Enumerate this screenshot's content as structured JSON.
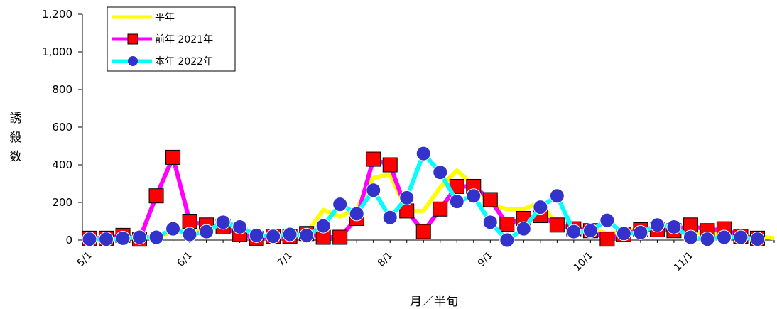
{
  "chart_data": {
    "type": "line",
    "ylabel": "誘殺数",
    "xlabel": "月／半旬",
    "ylim": [
      0,
      1200
    ],
    "yticks": [
      "0",
      "200",
      "400",
      "600",
      "800",
      "1,000",
      "1,200"
    ],
    "xtick_labels": [
      {
        "label": "5/1",
        "index": 0
      },
      {
        "label": "6/1",
        "index": 6
      },
      {
        "label": "7/1",
        "index": 12
      },
      {
        "label": "8/1",
        "index": 18
      },
      {
        "label": "9/1",
        "index": 24
      },
      {
        "label": "10/1",
        "index": 30
      },
      {
        "label": "11/1",
        "index": 36
      }
    ],
    "legend_position": "top-left",
    "series": [
      {
        "name": "平年",
        "color": "#ffff00",
        "marker": "none",
        "values": [
          10,
          10,
          15,
          10,
          15,
          45,
          35,
          65,
          85,
          50,
          25,
          20,
          25,
          35,
          160,
          125,
          165,
          330,
          350,
          155,
          155,
          280,
          370,
          290,
          185,
          165,
          165,
          200,
          80,
          65,
          60,
          35,
          45,
          60,
          60,
          45,
          40,
          35,
          30,
          25,
          20,
          10
        ]
      },
      {
        "name": "前年 2021年",
        "color": "#ff00ff",
        "marker": "square",
        "marker_fill": "#ff0000",
        "values": [
          10,
          10,
          25,
          5,
          235,
          440,
          100,
          80,
          70,
          30,
          10,
          20,
          20,
          35,
          15,
          15,
          115,
          430,
          400,
          155,
          45,
          165,
          285,
          285,
          215,
          85,
          115,
          130,
          80,
          60,
          50,
          5,
          30,
          55,
          55,
          50,
          80,
          50,
          60,
          20,
          10
        ]
      },
      {
        "name": "本年 2022年",
        "color": "#00ffff",
        "marker": "circle",
        "marker_fill": "#3333cc",
        "values": [
          5,
          5,
          10,
          15,
          15,
          60,
          30,
          45,
          95,
          70,
          25,
          20,
          30,
          25,
          75,
          190,
          140,
          265,
          120,
          225,
          460,
          360,
          205,
          235,
          95,
          0,
          60,
          175,
          235,
          45,
          50,
          105,
          35,
          40,
          80,
          70,
          15,
          5,
          15,
          15,
          5
        ]
      }
    ]
  }
}
